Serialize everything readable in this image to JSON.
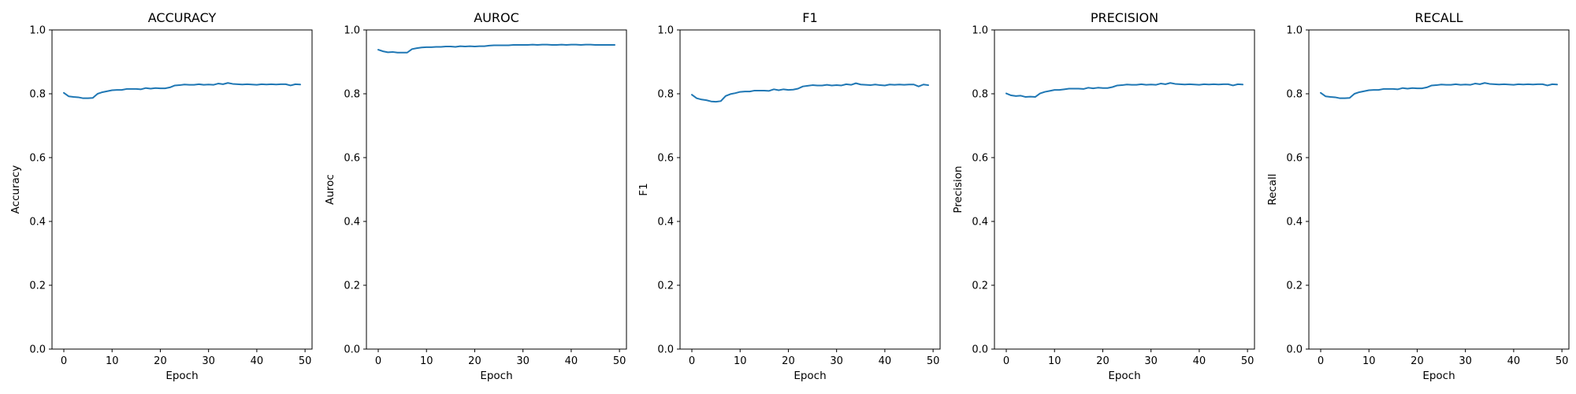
{
  "chart_data": [
    {
      "type": "line",
      "title": "ACCURACY",
      "xlabel": "Epoch",
      "ylabel": "Accuracy",
      "xlim": [
        -2.45,
        51.45
      ],
      "ylim": [
        0.0,
        1.0
      ],
      "xticks": [
        0,
        10,
        20,
        30,
        40,
        50
      ],
      "yticks": [
        0.0,
        0.2,
        0.4,
        0.6,
        0.8,
        1.0
      ],
      "grid": false,
      "series": [
        {
          "color": "#1f77b4",
          "x": [
            0,
            1,
            2,
            3,
            4,
            5,
            6,
            7,
            8,
            9,
            10,
            11,
            12,
            13,
            14,
            15,
            16,
            17,
            18,
            19,
            20,
            21,
            22,
            23,
            24,
            25,
            26,
            27,
            28,
            29,
            30,
            31,
            32,
            33,
            34,
            35,
            36,
            37,
            38,
            39,
            40,
            41,
            42,
            43,
            44,
            45,
            46,
            47,
            48,
            49
          ],
          "y": [
            0.803,
            0.792,
            0.79,
            0.789,
            0.786,
            0.786,
            0.787,
            0.8,
            0.805,
            0.808,
            0.811,
            0.812,
            0.812,
            0.815,
            0.815,
            0.815,
            0.814,
            0.818,
            0.816,
            0.818,
            0.817,
            0.817,
            0.82,
            0.826,
            0.827,
            0.829,
            0.828,
            0.828,
            0.83,
            0.828,
            0.829,
            0.828,
            0.832,
            0.83,
            0.834,
            0.831,
            0.83,
            0.829,
            0.83,
            0.829,
            0.828,
            0.83,
            0.829,
            0.83,
            0.829,
            0.83,
            0.83,
            0.826,
            0.83,
            0.829
          ]
        }
      ]
    },
    {
      "type": "line",
      "title": "AUROC",
      "xlabel": "Epoch",
      "ylabel": "Auroc",
      "xlim": [
        -2.45,
        51.45
      ],
      "ylim": [
        0.0,
        1.0
      ],
      "xticks": [
        0,
        10,
        20,
        30,
        40,
        50
      ],
      "yticks": [
        0.0,
        0.2,
        0.4,
        0.6,
        0.8,
        1.0
      ],
      "grid": false,
      "series": [
        {
          "color": "#1f77b4",
          "x": [
            0,
            1,
            2,
            3,
            4,
            5,
            6,
            7,
            8,
            9,
            10,
            11,
            12,
            13,
            14,
            15,
            16,
            17,
            18,
            19,
            20,
            21,
            22,
            23,
            24,
            25,
            26,
            27,
            28,
            29,
            30,
            31,
            32,
            33,
            34,
            35,
            36,
            37,
            38,
            39,
            40,
            41,
            42,
            43,
            44,
            45,
            46,
            47,
            48,
            49
          ],
          "y": [
            0.938,
            0.933,
            0.93,
            0.931,
            0.929,
            0.929,
            0.929,
            0.94,
            0.943,
            0.945,
            0.946,
            0.946,
            0.947,
            0.947,
            0.948,
            0.948,
            0.947,
            0.949,
            0.948,
            0.949,
            0.948,
            0.949,
            0.949,
            0.951,
            0.952,
            0.952,
            0.952,
            0.952,
            0.953,
            0.953,
            0.953,
            0.953,
            0.954,
            0.953,
            0.954,
            0.954,
            0.953,
            0.953,
            0.954,
            0.953,
            0.954,
            0.954,
            0.953,
            0.954,
            0.954,
            0.953,
            0.953,
            0.953,
            0.953,
            0.953
          ]
        }
      ]
    },
    {
      "type": "line",
      "title": "F1",
      "xlabel": "Epoch",
      "ylabel": "F1",
      "xlim": [
        -2.45,
        51.45
      ],
      "ylim": [
        0.0,
        1.0
      ],
      "xticks": [
        0,
        10,
        20,
        30,
        40,
        50
      ],
      "yticks": [
        0.0,
        0.2,
        0.4,
        0.6,
        0.8,
        1.0
      ],
      "grid": false,
      "series": [
        {
          "color": "#1f77b4",
          "x": [
            0,
            1,
            2,
            3,
            4,
            5,
            6,
            7,
            8,
            9,
            10,
            11,
            12,
            13,
            14,
            15,
            16,
            17,
            18,
            19,
            20,
            21,
            22,
            23,
            24,
            25,
            26,
            27,
            28,
            29,
            30,
            31,
            32,
            33,
            34,
            35,
            36,
            37,
            38,
            39,
            40,
            41,
            42,
            43,
            44,
            45,
            46,
            47,
            48,
            49
          ],
          "y": [
            0.797,
            0.786,
            0.782,
            0.78,
            0.776,
            0.775,
            0.777,
            0.793,
            0.799,
            0.802,
            0.806,
            0.807,
            0.807,
            0.81,
            0.81,
            0.81,
            0.809,
            0.814,
            0.811,
            0.814,
            0.812,
            0.813,
            0.816,
            0.823,
            0.825,
            0.827,
            0.826,
            0.826,
            0.828,
            0.826,
            0.827,
            0.826,
            0.83,
            0.828,
            0.833,
            0.829,
            0.828,
            0.827,
            0.829,
            0.827,
            0.826,
            0.829,
            0.828,
            0.829,
            0.828,
            0.829,
            0.829,
            0.823,
            0.829,
            0.827
          ]
        }
      ]
    },
    {
      "type": "line",
      "title": "PRECISION",
      "xlabel": "Epoch",
      "ylabel": "Precision",
      "xlim": [
        -2.45,
        51.45
      ],
      "ylim": [
        0.0,
        1.0
      ],
      "xticks": [
        0,
        10,
        20,
        30,
        40,
        50
      ],
      "yticks": [
        0.0,
        0.2,
        0.4,
        0.6,
        0.8,
        1.0
      ],
      "grid": false,
      "series": [
        {
          "color": "#1f77b4",
          "x": [
            0,
            1,
            2,
            3,
            4,
            5,
            6,
            7,
            8,
            9,
            10,
            11,
            12,
            13,
            14,
            15,
            16,
            17,
            18,
            19,
            20,
            21,
            22,
            23,
            24,
            25,
            26,
            27,
            28,
            29,
            30,
            31,
            32,
            33,
            34,
            35,
            36,
            37,
            38,
            39,
            40,
            41,
            42,
            43,
            44,
            45,
            46,
            47,
            48,
            49
          ],
          "y": [
            0.801,
            0.795,
            0.793,
            0.794,
            0.79,
            0.791,
            0.79,
            0.801,
            0.806,
            0.809,
            0.812,
            0.812,
            0.814,
            0.816,
            0.816,
            0.816,
            0.815,
            0.819,
            0.817,
            0.819,
            0.818,
            0.818,
            0.821,
            0.826,
            0.827,
            0.829,
            0.828,
            0.828,
            0.83,
            0.828,
            0.829,
            0.828,
            0.832,
            0.83,
            0.834,
            0.831,
            0.83,
            0.829,
            0.83,
            0.829,
            0.828,
            0.83,
            0.829,
            0.83,
            0.829,
            0.83,
            0.83,
            0.826,
            0.83,
            0.829
          ]
        }
      ]
    },
    {
      "type": "line",
      "title": "RECALL",
      "xlabel": "Epoch",
      "ylabel": "Recall",
      "xlim": [
        -2.45,
        51.45
      ],
      "ylim": [
        0.0,
        1.0
      ],
      "xticks": [
        0,
        10,
        20,
        30,
        40,
        50
      ],
      "yticks": [
        0.0,
        0.2,
        0.4,
        0.6,
        0.8,
        1.0
      ],
      "grid": false,
      "series": [
        {
          "color": "#1f77b4",
          "x": [
            0,
            1,
            2,
            3,
            4,
            5,
            6,
            7,
            8,
            9,
            10,
            11,
            12,
            13,
            14,
            15,
            16,
            17,
            18,
            19,
            20,
            21,
            22,
            23,
            24,
            25,
            26,
            27,
            28,
            29,
            30,
            31,
            32,
            33,
            34,
            35,
            36,
            37,
            38,
            39,
            40,
            41,
            42,
            43,
            44,
            45,
            46,
            47,
            48,
            49
          ],
          "y": [
            0.803,
            0.792,
            0.79,
            0.789,
            0.786,
            0.786,
            0.787,
            0.8,
            0.805,
            0.808,
            0.811,
            0.812,
            0.812,
            0.815,
            0.815,
            0.815,
            0.814,
            0.818,
            0.816,
            0.818,
            0.817,
            0.817,
            0.82,
            0.826,
            0.827,
            0.829,
            0.828,
            0.828,
            0.83,
            0.828,
            0.829,
            0.828,
            0.832,
            0.83,
            0.834,
            0.831,
            0.83,
            0.829,
            0.83,
            0.829,
            0.828,
            0.83,
            0.829,
            0.83,
            0.829,
            0.83,
            0.83,
            0.826,
            0.83,
            0.829
          ]
        }
      ]
    }
  ]
}
